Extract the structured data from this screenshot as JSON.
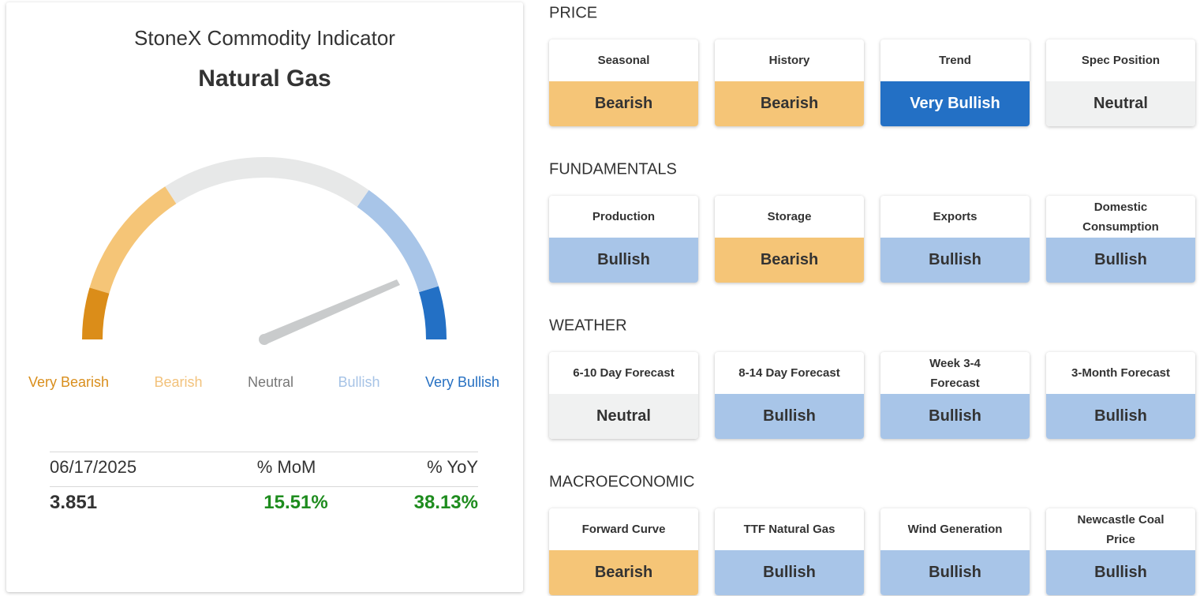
{
  "panel": {
    "title": "StoneX Commodity Indicator",
    "commodity": "Natural Gas",
    "gauge_labels": [
      {
        "label": "Very Bearish",
        "color": "#d98e1c"
      },
      {
        "label": "Bearish",
        "color": "#f2c27c"
      },
      {
        "label": "Neutral",
        "color": "#777777"
      },
      {
        "label": "Bullish",
        "color": "#a6c3e6"
      },
      {
        "label": "Very Bullish",
        "color": "#2670c2"
      }
    ],
    "stats": {
      "header": [
        "06/17/2025",
        "% MoM",
        "% YoY"
      ],
      "values": [
        "3.851",
        "15.51%",
        "38.13%"
      ],
      "change_color": "#1e8c1e"
    }
  },
  "sections": [
    {
      "title": "PRICE",
      "cards": [
        {
          "label": "Seasonal",
          "value": "Bearish",
          "color": "#f5c577"
        },
        {
          "label": "History",
          "value": "Bearish",
          "color": "#f5c577"
        },
        {
          "label": "Trend",
          "value": "Very Bullish",
          "color": "#2370c5"
        },
        {
          "label": "Spec Position",
          "value": "Neutral",
          "color": "#f0f1f1"
        }
      ]
    },
    {
      "title": "FUNDAMENTALS",
      "cards": [
        {
          "label": "Production",
          "value": "Bullish",
          "color": "#a8c5e8"
        },
        {
          "label": "Storage",
          "value": "Bearish",
          "color": "#f5c577"
        },
        {
          "label": "Exports",
          "value": "Bullish",
          "color": "#a8c5e8"
        },
        {
          "label": "Domestic Consumption",
          "value": "Bullish",
          "color": "#a8c5e8"
        }
      ]
    },
    {
      "title": "WEATHER",
      "cards": [
        {
          "label": "6-10 Day Forecast",
          "value": "Neutral",
          "color": "#f0f1f1"
        },
        {
          "label": "8-14 Day Forecast",
          "value": "Bullish",
          "color": "#a8c5e8"
        },
        {
          "label": "Week 3-4 Forecast",
          "value": "Bullish",
          "color": "#a8c5e8"
        },
        {
          "label": "3-Month Forecast",
          "value": "Bullish",
          "color": "#a8c5e8"
        }
      ]
    },
    {
      "title": "MACROECONOMIC",
      "cards": [
        {
          "label": "Forward Curve",
          "value": "Bearish",
          "color": "#f5c577"
        },
        {
          "label": "TTF Natural Gas",
          "value": "Bullish",
          "color": "#a8c5e8"
        },
        {
          "label": "Wind Generation",
          "value": "Bullish",
          "color": "#a8c5e8"
        },
        {
          "label": "Newcastle Coal Price",
          "value": "Bullish",
          "color": "#a8c5e8"
        }
      ]
    }
  ]
}
